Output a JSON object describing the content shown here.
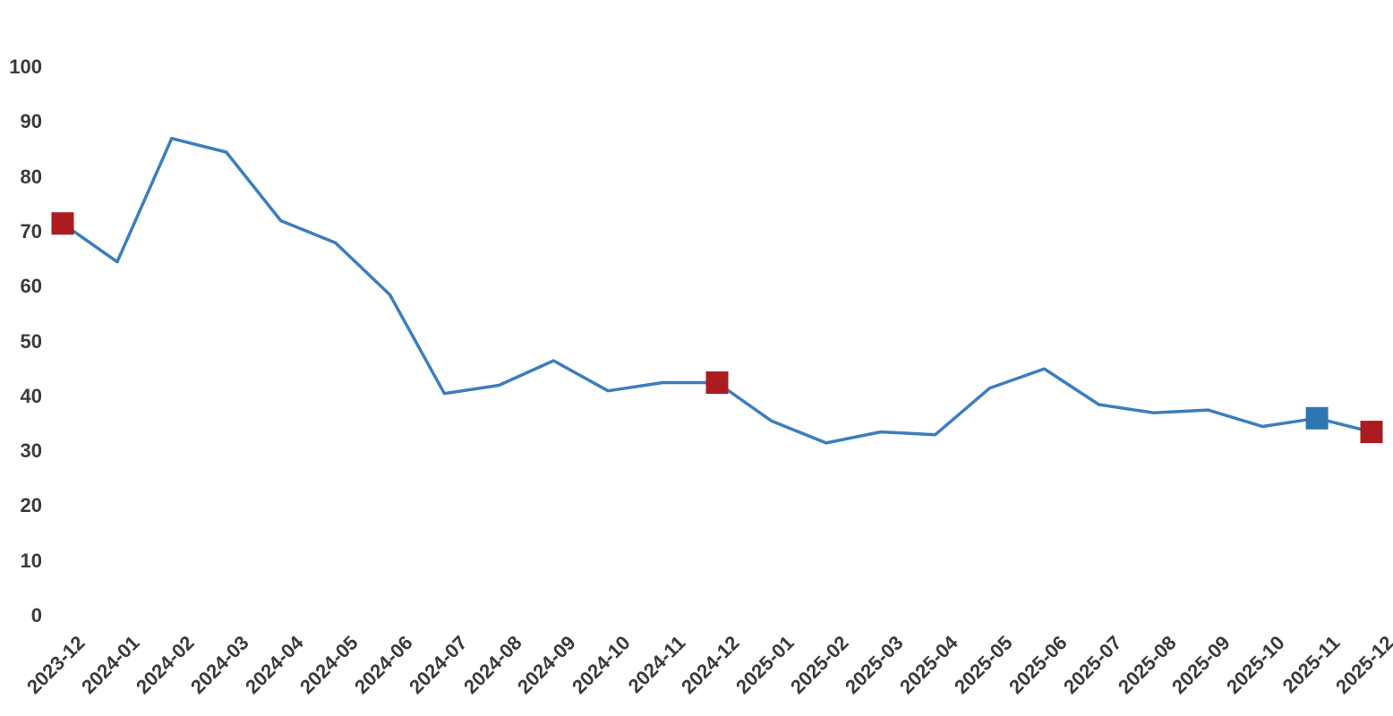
{
  "chart_data": {
    "type": "line",
    "title": "",
    "xlabel": "",
    "ylabel": "",
    "categories": [
      "2023-12",
      "2024-01",
      "2024-02",
      "2024-03",
      "2024-04",
      "2024-05",
      "2024-06",
      "2024-07",
      "2024-08",
      "2024-09",
      "2024-10",
      "2024-11",
      "2024-12",
      "2025-01",
      "2025-02",
      "2025-03",
      "2025-04",
      "2025-05",
      "2025-06",
      "2025-07",
      "2025-08",
      "2025-09",
      "2025-10",
      "2025-11",
      "2025-12"
    ],
    "values": [
      71.5,
      64.5,
      87,
      84.5,
      72,
      68,
      58.5,
      40.5,
      42,
      46.5,
      41,
      42.5,
      42.5,
      35.5,
      31.5,
      33.5,
      33,
      41.5,
      45,
      38.5,
      37,
      37.5,
      34.5,
      36,
      33.5
    ],
    "y_ticks": [
      0,
      10,
      20,
      30,
      40,
      50,
      60,
      70,
      80,
      90,
      100
    ],
    "ylim": [
      0,
      100
    ],
    "grid": false,
    "legend_position": "none",
    "line_color": "#3c7ebe",
    "tick_label_color": "#3b3b3d",
    "markers": [
      {
        "category": "2023-12",
        "index": 0,
        "value": 71.5,
        "shape": "square",
        "color": "#aa1c20"
      },
      {
        "category": "2024-12",
        "index": 12,
        "value": 42.5,
        "shape": "square",
        "color": "#aa1c20"
      },
      {
        "category": "2025-11",
        "index": 23,
        "value": 36,
        "shape": "square",
        "color": "#2e76b2"
      },
      {
        "category": "2025-12",
        "index": 24,
        "value": 33.5,
        "shape": "square",
        "color": "#aa1c20"
      }
    ]
  }
}
